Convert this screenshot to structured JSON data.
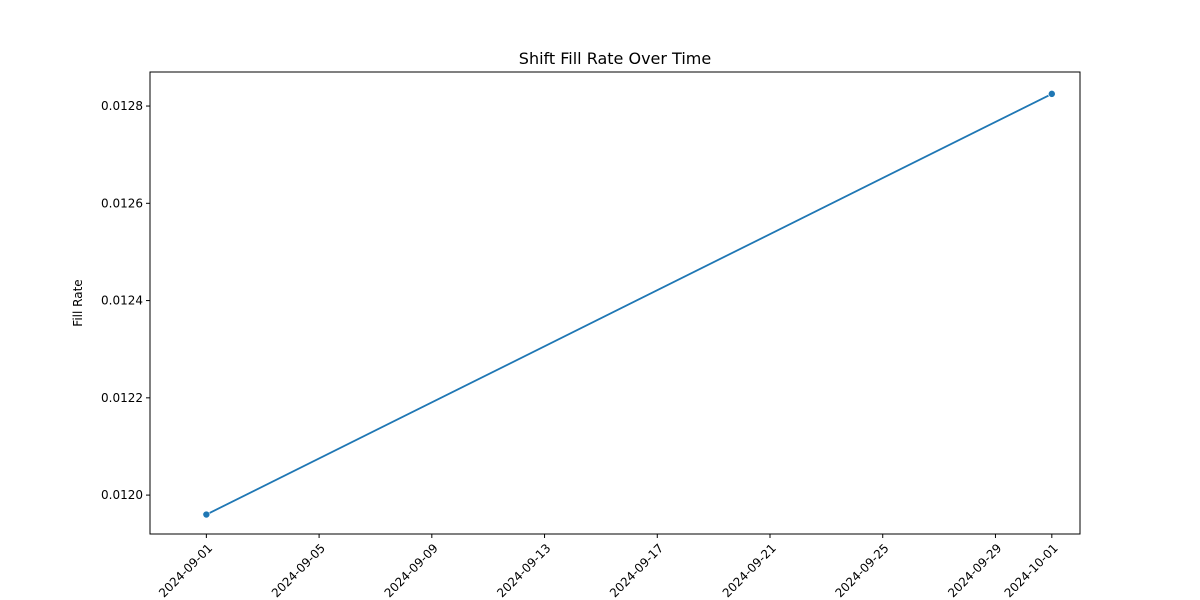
{
  "chart_data": {
    "type": "line",
    "title": "Shift Fill Rate Over Time",
    "xlabel": "",
    "ylabel": "Fill Rate",
    "x_ticks": [
      "2024-09-01",
      "2024-09-05",
      "2024-09-09",
      "2024-09-13",
      "2024-09-17",
      "2024-09-21",
      "2024-09-25",
      "2024-09-29",
      "2024-10-01"
    ],
    "y_ticks": [
      "0.0120",
      "0.0122",
      "0.0124",
      "0.0126",
      "0.0128"
    ],
    "xlim": [
      "2024-08-30",
      "2024-10-02"
    ],
    "ylim": [
      0.01192,
      0.01287
    ],
    "grid": false,
    "series": [
      {
        "color": "#1f77b4",
        "points": [
          {
            "x": "2024-09-01",
            "y": 0.01196
          },
          {
            "x": "2024-10-01",
            "y": 0.012825
          }
        ]
      }
    ]
  }
}
